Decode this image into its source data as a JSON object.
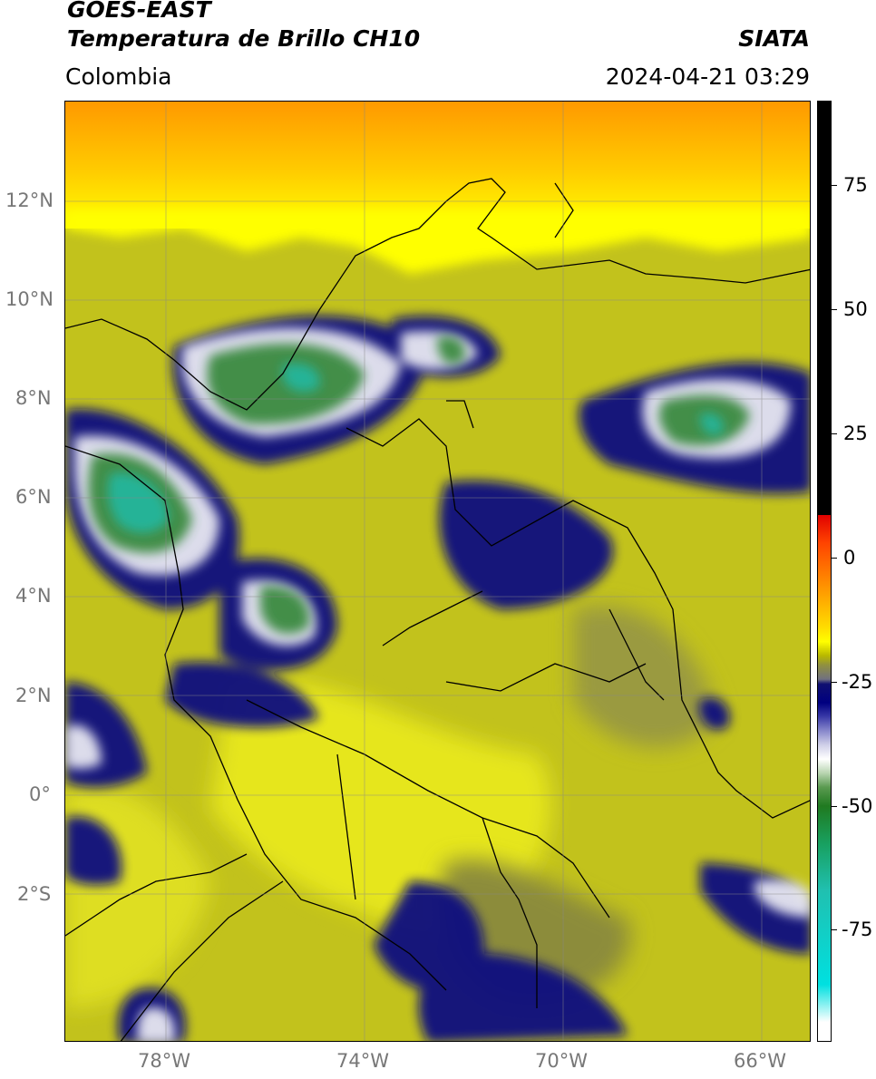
{
  "header": {
    "satellite": "GOES-EAST",
    "product": "Temperatura de Brillo CH10",
    "region": "Colombia",
    "agency": "SIATA",
    "datetime": "2024-04-21 03:29"
  },
  "map": {
    "lat_labels": [
      "12°N",
      "10°N",
      "8°N",
      "6°N",
      "4°N",
      "2°N",
      "0°",
      "2°S"
    ],
    "lon_labels": [
      "78°W",
      "74°W",
      "70°W",
      "66°W"
    ],
    "extent": {
      "lon_min": -80.0,
      "lon_max": -65.0,
      "lat_min": -5.0,
      "lat_max": 14.0
    }
  },
  "colorbar": {
    "labels": [
      "75",
      "50",
      "25",
      "0",
      "-25",
      "-50",
      "-75"
    ],
    "colors": {
      "warm": "#ffff00",
      "mid": "#b8b800",
      "cold": "#000080",
      "coldest": "#20c0b0",
      "hot": "#000000"
    }
  }
}
